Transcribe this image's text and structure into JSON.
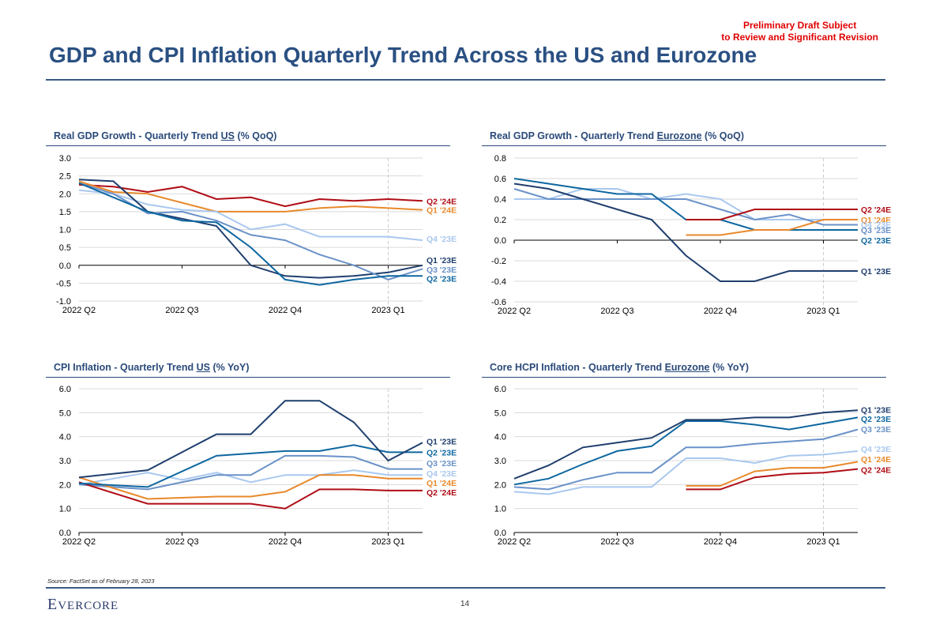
{
  "header": {
    "draft_line1": "Preliminary Draft Subject",
    "draft_line2": "to Review and Significant Revision",
    "title": "GDP and CPI Inflation Quarterly Trend Across the US and Eurozone"
  },
  "footer": {
    "source": "Source: FactSet as of February 28, 2023",
    "logo_first": "E",
    "logo_rest": "VERCORE",
    "page_number": "14"
  },
  "colors": {
    "Q1 '23E": "#1f3f6e",
    "Q2 '23E": "#0e67a0",
    "Q3 '23E": "#6a92c8",
    "Q4 '23E": "#a9c8ef",
    "Q1 '24E": "#e8892c",
    "Q2 '24E": "#b00d16"
  },
  "chart_data": [
    {
      "id": "us-gdp",
      "type": "line",
      "title_pre": "Real GDP Growth - Quarterly Trend ",
      "title_region": "US",
      "title_post": " (% QoQ)",
      "xlabel": "",
      "ylabel": "",
      "x_ticks": [
        "2022 Q2",
        "2022 Q3",
        "2022 Q4",
        "2023 Q1"
      ],
      "x_tick_index": [
        0,
        3,
        6,
        9
      ],
      "n_points": 11,
      "ylim": [
        -1.0,
        3.0
      ],
      "y_ticks": [
        3.0,
        2.5,
        2.0,
        1.5,
        1.0,
        0.5,
        0.0,
        -0.5,
        -1.0
      ],
      "y_decimals": 1,
      "grid": true,
      "dashed_marker_index": 9,
      "series": [
        {
          "name": "Q2 '24E",
          "x": [
            0,
            1,
            2,
            3,
            4,
            5,
            6,
            7,
            8,
            9,
            10
          ],
          "values": [
            2.25,
            2.2,
            2.05,
            2.2,
            1.85,
            1.9,
            1.65,
            1.85,
            1.8,
            1.85,
            1.8
          ]
        },
        {
          "name": "Q1 '24E",
          "x": [
            0,
            1,
            2,
            3,
            4,
            5,
            6,
            7,
            8,
            9,
            10
          ],
          "values": [
            2.35,
            2.05,
            2.0,
            1.75,
            1.5,
            1.5,
            1.5,
            1.6,
            1.65,
            1.6,
            1.55
          ]
        },
        {
          "name": "Q4 '23E",
          "x": [
            0,
            1,
            2,
            3,
            4,
            5,
            6,
            7,
            8,
            9,
            10
          ],
          "values": [
            2.1,
            2.0,
            1.7,
            1.55,
            1.5,
            1.0,
            1.15,
            0.8,
            0.8,
            0.8,
            0.7
          ]
        },
        {
          "name": "Q1 '23E",
          "x": [
            0,
            1,
            2,
            3,
            4,
            5,
            6,
            7,
            8,
            9,
            10
          ],
          "values": [
            2.4,
            2.35,
            1.5,
            1.3,
            1.1,
            0.0,
            -0.3,
            -0.35,
            -0.3,
            -0.2,
            0.0
          ]
        },
        {
          "name": "Q3 '23E",
          "x": [
            0,
            1,
            2,
            3,
            4,
            5,
            6,
            7,
            8,
            9,
            10
          ],
          "values": [
            2.3,
            2.0,
            1.45,
            1.5,
            1.25,
            0.85,
            0.7,
            0.3,
            0.0,
            -0.4,
            -0.1
          ]
        },
        {
          "name": "Q2 '23E",
          "x": [
            0,
            1,
            2,
            3,
            4,
            5,
            6,
            7,
            8,
            9,
            10
          ],
          "values": [
            2.3,
            1.9,
            1.5,
            1.25,
            1.2,
            0.5,
            -0.4,
            -0.55,
            -0.4,
            -0.3,
            -0.3
          ]
        }
      ],
      "labels": [
        {
          "name": "Q2 '24E",
          "y": 1.8
        },
        {
          "name": "Q1 '24E",
          "y": 1.55
        },
        {
          "name": "Q4 '23E",
          "y": 0.75
        },
        {
          "name": "Q1 '23E",
          "y": 0.15
        },
        {
          "name": "Q3 '23E",
          "y": -0.12
        },
        {
          "name": "Q2 '23E",
          "y": -0.37
        }
      ]
    },
    {
      "id": "ez-gdp",
      "type": "line",
      "title_pre": "Real GDP Growth - Quarterly Trend ",
      "title_region": "Eurozone",
      "title_post": " (% QoQ)",
      "xlabel": "",
      "ylabel": "",
      "x_ticks": [
        "2022 Q2",
        "2022 Q3",
        "2022 Q4",
        "2023 Q1"
      ],
      "x_tick_index": [
        0,
        3,
        6,
        9
      ],
      "n_points": 11,
      "ylim": [
        -0.6,
        0.8
      ],
      "y_ticks": [
        0.8,
        0.6,
        0.4,
        0.2,
        0.0,
        -0.2,
        -0.4,
        -0.6
      ],
      "y_decimals": 1,
      "grid": true,
      "dashed_marker_index": 9,
      "series": [
        {
          "name": "Q4 '23E",
          "x": [
            0,
            1,
            2,
            3,
            4,
            5,
            6,
            7,
            8,
            9,
            10
          ],
          "values": [
            0.4,
            0.4,
            0.5,
            0.5,
            0.4,
            0.45,
            0.4,
            0.2,
            0.2,
            0.2,
            0.2
          ]
        },
        {
          "name": "Q3 '23E",
          "x": [
            0,
            1,
            2,
            3,
            4,
            5,
            6,
            7,
            8,
            9,
            10
          ],
          "values": [
            0.5,
            0.4,
            0.4,
            0.4,
            0.4,
            0.4,
            0.3,
            0.2,
            0.25,
            0.15,
            0.15
          ]
        },
        {
          "name": "Q2 '23E",
          "x": [
            0,
            1,
            2,
            3,
            4,
            5,
            6,
            7,
            8,
            9,
            10
          ],
          "values": [
            0.6,
            0.55,
            0.5,
            0.45,
            0.45,
            0.2,
            0.2,
            0.1,
            0.1,
            0.1,
            0.1
          ]
        },
        {
          "name": "Q1 '23E",
          "x": [
            0,
            1,
            2,
            3,
            4,
            5,
            6,
            7,
            8,
            9,
            10
          ],
          "values": [
            0.55,
            0.5,
            0.4,
            0.3,
            0.2,
            -0.15,
            -0.4,
            -0.4,
            -0.3,
            -0.3,
            -0.3
          ]
        },
        {
          "name": "Q1 '24E",
          "x": [
            5,
            6,
            7,
            8,
            9,
            10
          ],
          "values": [
            0.05,
            0.05,
            0.1,
            0.1,
            0.2,
            0.2
          ]
        },
        {
          "name": "Q2 '24E",
          "x": [
            5,
            6,
            7,
            8,
            9,
            10
          ],
          "values": [
            0.2,
            0.2,
            0.3,
            0.3,
            0.3,
            0.3
          ]
        }
      ],
      "labels": [
        {
          "name": "Q2 '24E",
          "y": 0.3
        },
        {
          "name": "Q1 '24E",
          "y": 0.2
        },
        {
          "name": "Q4 '23E",
          "y": 0.155
        },
        {
          "name": "Q3 '23E",
          "y": 0.1
        },
        {
          "name": "Q2 '23E",
          "y": 0.0
        },
        {
          "name": "Q1 '23E",
          "y": -0.3
        }
      ]
    },
    {
      "id": "us-cpi",
      "type": "line",
      "title_pre": "CPI Inflation - Quarterly Trend ",
      "title_region": "US",
      "title_post": " (% YoY)",
      "xlabel": "",
      "ylabel": "",
      "x_ticks": [
        "2022 Q2",
        "2022 Q3",
        "2022 Q4",
        "2023 Q1"
      ],
      "x_tick_index": [
        0,
        3,
        6,
        9
      ],
      "n_points": 11,
      "ylim": [
        0.0,
        6.0
      ],
      "y_ticks": [
        6.0,
        5.0,
        4.0,
        3.0,
        2.0,
        1.0,
        0.0
      ],
      "y_decimals": 1,
      "grid": true,
      "dashed_marker_index": 9,
      "series": [
        {
          "name": "Q4 '23E",
          "x": [
            0,
            2,
            3,
            4,
            5,
            6,
            7,
            8,
            9,
            10
          ],
          "values": [
            2.0,
            2.5,
            2.2,
            2.5,
            2.1,
            2.4,
            2.4,
            2.6,
            2.4,
            2.4
          ]
        },
        {
          "name": "Q3 '23E",
          "x": [
            0,
            2,
            4,
            5,
            6,
            7,
            8,
            9,
            10
          ],
          "values": [
            2.0,
            1.8,
            2.4,
            2.4,
            3.2,
            3.2,
            3.15,
            2.65,
            2.65
          ]
        },
        {
          "name": "Q1 '24E",
          "x": [
            0,
            2,
            4,
            5,
            6,
            7,
            8,
            9,
            10
          ],
          "values": [
            2.3,
            1.4,
            1.5,
            1.5,
            1.7,
            2.4,
            2.4,
            2.25,
            2.25
          ]
        },
        {
          "name": "Q2 '24E",
          "x": [
            0,
            2,
            4,
            5,
            6,
            7,
            8,
            9,
            10
          ],
          "values": [
            2.1,
            1.2,
            1.2,
            1.2,
            1.0,
            1.8,
            1.8,
            1.75,
            1.75
          ]
        },
        {
          "name": "Q2 '23E",
          "x": [
            0,
            2,
            4,
            5,
            6,
            7,
            8,
            9,
            10
          ],
          "values": [
            2.05,
            1.9,
            3.2,
            3.3,
            3.4,
            3.4,
            3.65,
            3.35,
            3.35
          ]
        },
        {
          "name": "Q1 '23E",
          "x": [
            0,
            2,
            4,
            5,
            6,
            7,
            8,
            9,
            10
          ],
          "values": [
            2.3,
            2.6,
            4.1,
            4.1,
            5.5,
            5.5,
            4.6,
            3.0,
            3.75
          ]
        }
      ],
      "labels": [
        {
          "name": "Q1 '23E",
          "y": 3.8
        },
        {
          "name": "Q2 '23E",
          "y": 3.35
        },
        {
          "name": "Q3 '23E",
          "y": 2.9
        },
        {
          "name": "Q4 '23E",
          "y": 2.48
        },
        {
          "name": "Q1 '24E",
          "y": 2.08
        },
        {
          "name": "Q2 '24E",
          "y": 1.68
        }
      ]
    },
    {
      "id": "ez-hcpi",
      "type": "line",
      "title_pre": "Core HCPI Inflation - Quarterly Trend ",
      "title_region": "Eurozone",
      "title_post": " (% YoY)",
      "xlabel": "",
      "ylabel": "",
      "x_ticks": [
        "2022 Q2",
        "2022 Q3",
        "2022 Q4",
        "2023 Q1"
      ],
      "x_tick_index": [
        0,
        3,
        6,
        9
      ],
      "n_points": 11,
      "ylim": [
        0.0,
        6.0
      ],
      "y_ticks": [
        6.0,
        5.0,
        4.0,
        3.0,
        2.0,
        1.0,
        0.0
      ],
      "y_decimals": 1,
      "grid": true,
      "dashed_marker_index": 9,
      "series": [
        {
          "name": "Q4 '23E",
          "x": [
            0,
            1,
            2,
            3,
            4,
            5,
            6,
            7,
            8,
            9,
            10
          ],
          "values": [
            1.7,
            1.6,
            1.9,
            1.9,
            1.9,
            3.1,
            3.1,
            2.9,
            3.2,
            3.25,
            3.4
          ]
        },
        {
          "name": "Q3 '23E",
          "x": [
            0,
            1,
            2,
            3,
            4,
            5,
            6,
            7,
            8,
            9,
            10
          ],
          "values": [
            1.9,
            1.8,
            2.2,
            2.5,
            2.5,
            3.55,
            3.55,
            3.7,
            3.8,
            3.9,
            4.3
          ]
        },
        {
          "name": "Q2 '23E",
          "x": [
            0,
            1,
            2,
            3,
            4,
            5,
            6,
            7,
            8,
            9,
            10
          ],
          "values": [
            2.0,
            2.25,
            2.85,
            3.4,
            3.6,
            4.65,
            4.65,
            4.5,
            4.3,
            4.55,
            4.8
          ]
        },
        {
          "name": "Q1 '23E",
          "x": [
            0,
            1,
            2,
            3,
            4,
            5,
            6,
            7,
            8,
            9,
            10
          ],
          "values": [
            2.25,
            2.8,
            3.55,
            3.75,
            3.95,
            4.7,
            4.7,
            4.8,
            4.8,
            5.0,
            5.1
          ]
        },
        {
          "name": "Q1 '24E",
          "x": [
            5,
            6,
            7,
            8,
            9,
            10
          ],
          "values": [
            1.95,
            1.95,
            2.55,
            2.7,
            2.7,
            2.95
          ]
        },
        {
          "name": "Q2 '24E",
          "x": [
            5,
            6,
            7,
            8,
            9,
            10
          ],
          "values": [
            1.8,
            1.8,
            2.3,
            2.45,
            2.5,
            2.65
          ]
        }
      ],
      "labels": [
        {
          "name": "Q1 '23E",
          "y": 5.12
        },
        {
          "name": "Q2 '23E",
          "y": 4.75
        },
        {
          "name": "Q3 '23E",
          "y": 4.32
        },
        {
          "name": "Q4 '23E",
          "y": 3.5
        },
        {
          "name": "Q1 '24E",
          "y": 3.07
        },
        {
          "name": "Q2 '24E",
          "y": 2.62
        }
      ]
    }
  ]
}
